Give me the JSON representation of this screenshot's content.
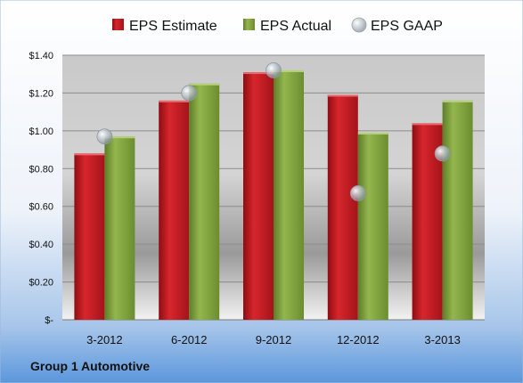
{
  "caption": "Group 1 Automotive",
  "colors": {
    "estimate": "#c8161d",
    "actual": "#7fa33c",
    "gaap": "#a9b3bd"
  },
  "chart_data": {
    "type": "bar",
    "categories": [
      "3-2012",
      "6-2012",
      "9-2012",
      "12-2012",
      "3-2013"
    ],
    "series": [
      {
        "name": "EPS Estimate",
        "kind": "bar",
        "values": [
          0.88,
          1.16,
          1.31,
          1.19,
          1.04
        ]
      },
      {
        "name": "EPS Actual",
        "kind": "bar",
        "values": [
          0.97,
          1.25,
          1.32,
          0.99,
          1.16
        ]
      },
      {
        "name": "EPS GAAP",
        "kind": "scatter",
        "values": [
          0.97,
          1.2,
          1.32,
          0.67,
          0.88
        ]
      }
    ],
    "ylim": [
      0,
      1.4
    ],
    "yticks": [
      0,
      0.2,
      0.4,
      0.6,
      0.8,
      1.0,
      1.2,
      1.4
    ],
    "ytick_labels": [
      "$-",
      "$0.20",
      "$0.40",
      "$0.60",
      "$0.80",
      "$1.00",
      "$1.20",
      "$1.40"
    ],
    "grid": true,
    "legend": "top"
  }
}
